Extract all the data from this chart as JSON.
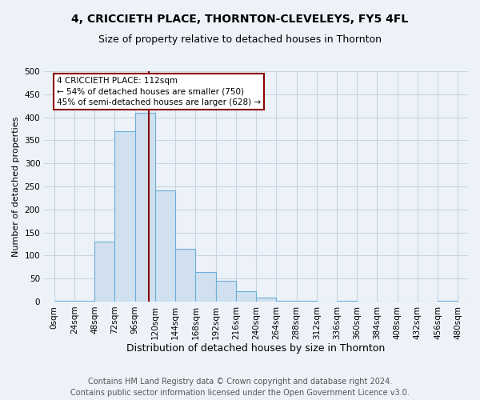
{
  "title1": "4, CRICCIETH PLACE, THORNTON-CLEVELEYS, FY5 4FL",
  "title2": "Size of property relative to detached houses in Thornton",
  "xlabel": "Distribution of detached houses by size in Thornton",
  "ylabel": "Number of detached properties",
  "bin_edges": [
    0,
    24,
    48,
    72,
    96,
    120,
    144,
    168,
    192,
    216,
    240,
    264,
    288,
    312,
    336,
    360,
    384,
    408,
    432,
    456,
    480
  ],
  "bar_heights": [
    2,
    2,
    130,
    370,
    410,
    242,
    115,
    65,
    45,
    22,
    8,
    2,
    2,
    0,
    2,
    0,
    0,
    0,
    0,
    2
  ],
  "bar_color": "#d0e0ef",
  "bar_edge_color": "#6baed6",
  "property_size": 112,
  "vline_color": "#8b0000",
  "annotation_text": "4 CRICCIETH PLACE: 112sqm\n← 54% of detached houses are smaller (750)\n45% of semi-detached houses are larger (628) →",
  "annotation_box_color": "#ffffff",
  "annotation_box_edge": "#8b0000",
  "ylim": [
    0,
    500
  ],
  "xlim_min": -12,
  "xlim_max": 492,
  "grid_color": "#c8d4e4",
  "footnote1": "Contains HM Land Registry data © Crown copyright and database right 2024.",
  "footnote2": "Contains public sector information licensed under the Open Government Licence v3.0.",
  "bg_color": "#edf2f9",
  "plot_bg_color": "#edf2f9",
  "title1_fontsize": 10,
  "title2_fontsize": 9,
  "ylabel_fontsize": 8,
  "xlabel_fontsize": 9,
  "tick_fontsize": 7.5,
  "footnote_fontsize": 7
}
